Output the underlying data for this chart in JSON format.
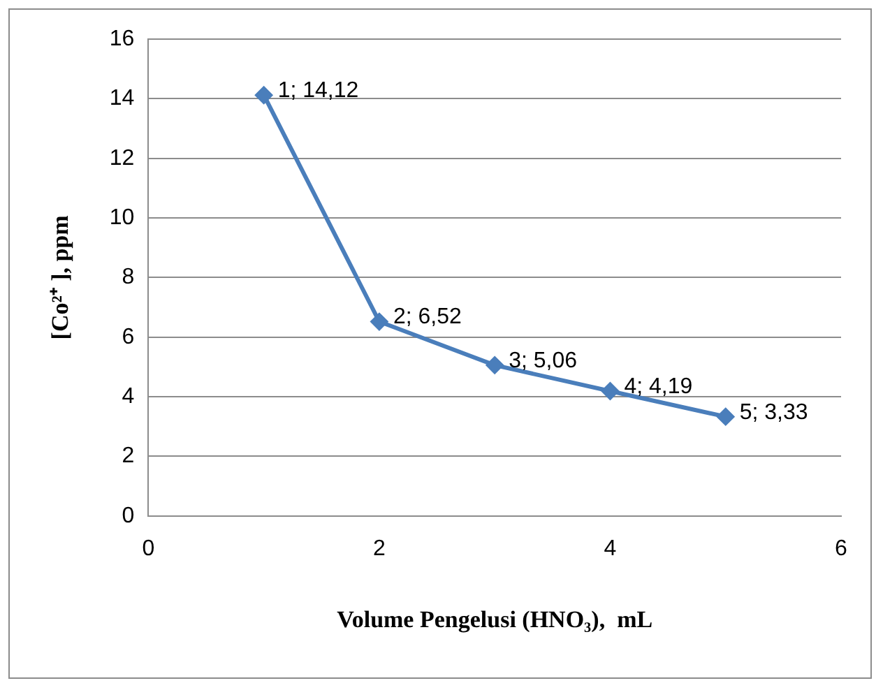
{
  "chart_data": {
    "type": "line",
    "xlabel": "Volume Pengelusi (HNO₃),  mL",
    "ylabel": "[Co²⁺ ], ppm",
    "x": [
      1,
      2,
      3,
      4,
      5
    ],
    "series": [
      {
        "color": "#4a7ebb",
        "values": [
          14.12,
          6.52,
          5.06,
          4.19,
          3.33
        ],
        "value_labels": [
          "1; 14,12",
          "2; 6,52",
          "3; 5,06",
          "4; 4,19",
          "5; 3,33"
        ]
      }
    ],
    "xlim": [
      0,
      6
    ],
    "xticks": [
      0,
      2,
      4,
      6
    ],
    "ylim": [
      0,
      16
    ],
    "yticks": [
      0,
      2,
      4,
      6,
      8,
      10,
      12,
      14,
      16
    ],
    "grid": "y",
    "marker": "diamond",
    "line_style": "solid",
    "legend": false
  }
}
